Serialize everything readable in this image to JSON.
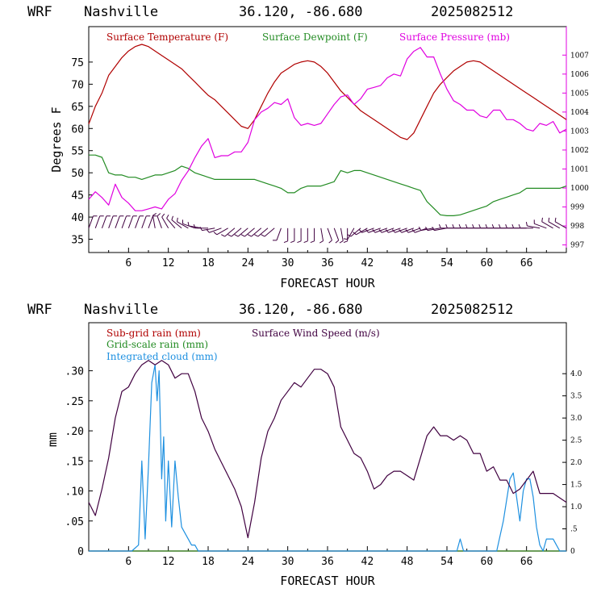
{
  "colors": {
    "temperature": "#b00000",
    "dewpoint": "#228b22",
    "pressure": "#e000e0",
    "wind_barbs": "#400040",
    "wind_speed": "#400040",
    "cloud": "#1e90e0"
  },
  "chart_data": [
    {
      "type": "line",
      "header": {
        "model": "WRF",
        "site": "Nashville",
        "coords": "36.120, -86.680",
        "run": "2025082512"
      },
      "xlabel": "FORECAST HOUR",
      "ylabel": "Degrees F",
      "xlim": [
        0,
        72
      ],
      "ylim": [
        32,
        83
      ],
      "xticks": [
        6,
        12,
        18,
        24,
        30,
        36,
        42,
        48,
        54,
        60,
        66
      ],
      "xtick_labels": [
        "6",
        "12",
        "18",
        "24",
        "30",
        "36",
        "42",
        "48",
        "54",
        "60",
        "66"
      ],
      "yticks": [
        35,
        40,
        45,
        50,
        55,
        60,
        65,
        70,
        75
      ],
      "ytick_labels": [
        "35",
        "40",
        "45",
        "50",
        "55",
        "60",
        "65",
        "70",
        "75"
      ],
      "y2lim": [
        996.6,
        1008.5
      ],
      "y2ticks": [
        997,
        998,
        999,
        1000,
        1001,
        1002,
        1003,
        1004,
        1005,
        1006,
        1007
      ],
      "y2tick_labels": [
        "997",
        "998",
        "999",
        "1000",
        "1001",
        "1002",
        "1003",
        "1004",
        "1005",
        "1006",
        "1007"
      ],
      "legend": [
        "Surface Temperature (F)",
        "Surface Dewpoint (F)",
        "Surface Pressure (mb)"
      ],
      "series": [
        {
          "name": "Surface Temperature (F)",
          "axis": "left",
          "x": [
            0,
            1,
            2,
            3,
            4,
            5,
            6,
            7,
            8,
            9,
            10,
            11,
            12,
            13,
            14,
            15,
            16,
            17,
            18,
            19,
            20,
            21,
            22,
            23,
            24,
            25,
            26,
            27,
            28,
            29,
            30,
            31,
            32,
            33,
            34,
            35,
            36,
            37,
            38,
            39,
            40,
            41,
            42,
            43,
            44,
            45,
            46,
            47,
            48,
            49,
            50,
            51,
            52,
            53,
            54,
            55,
            56,
            57,
            58,
            59,
            60,
            61,
            62,
            63,
            64,
            65,
            66,
            67,
            68,
            69,
            70,
            71,
            72
          ],
          "y": [
            61,
            65,
            68,
            72,
            74,
            76,
            77.5,
            78.5,
            79,
            78.5,
            77.5,
            76.5,
            75.5,
            74.5,
            73.5,
            72,
            70.5,
            69,
            67.5,
            66.5,
            65,
            63.5,
            62,
            60.5,
            60,
            62,
            65,
            68,
            70.5,
            72.5,
            73.5,
            74.5,
            75,
            75.3,
            75,
            74,
            72.5,
            70.5,
            68.5,
            67,
            65.5,
            64,
            63,
            62,
            61,
            60,
            59,
            58,
            57.5,
            59,
            62,
            65,
            68,
            70,
            71.5,
            73,
            74,
            75,
            75.3,
            75,
            74,
            73,
            72,
            71,
            70,
            69,
            68,
            67,
            66,
            65,
            64,
            63,
            62
          ]
        },
        {
          "name": "Surface Dewpoint (F)",
          "axis": "left",
          "x": [
            0,
            1,
            2,
            3,
            4,
            5,
            6,
            7,
            8,
            9,
            10,
            11,
            12,
            13,
            14,
            15,
            16,
            17,
            18,
            19,
            20,
            21,
            22,
            23,
            24,
            25,
            26,
            27,
            28,
            29,
            30,
            31,
            32,
            33,
            34,
            35,
            36,
            37,
            38,
            39,
            40,
            41,
            42,
            43,
            44,
            45,
            46,
            47,
            48,
            49,
            50,
            51,
            52,
            53,
            54,
            55,
            56,
            57,
            58,
            59,
            60,
            61,
            62,
            63,
            64,
            65,
            66,
            67,
            68,
            69,
            70,
            71,
            72
          ],
          "y": [
            54,
            54,
            53.5,
            50,
            49.5,
            49.5,
            49,
            49,
            48.5,
            49,
            49.5,
            49.5,
            50,
            50.5,
            51.5,
            51,
            50,
            49.5,
            49,
            48.5,
            48.5,
            48.5,
            48.5,
            48.5,
            48.5,
            48.5,
            48,
            47.5,
            47,
            46.5,
            45.5,
            45.5,
            46.5,
            47,
            47,
            47,
            47.5,
            48,
            50.5,
            50,
            50.5,
            50.5,
            50,
            49.5,
            49,
            48.5,
            48,
            47.5,
            47,
            46.5,
            46,
            43.5,
            42,
            40.5,
            40.3,
            40.3,
            40.5,
            41,
            41.5,
            42,
            42.5,
            43.5,
            44,
            44.5,
            45,
            45.5,
            46.5,
            46.5,
            46.5,
            46.5,
            46.5,
            46.5,
            47
          ]
        },
        {
          "name": "Surface Pressure (mb)",
          "axis": "right",
          "x": [
            0,
            1,
            2,
            3,
            4,
            5,
            6,
            7,
            8,
            9,
            10,
            11,
            12,
            13,
            14,
            15,
            16,
            17,
            18,
            19,
            20,
            21,
            22,
            23,
            24,
            25,
            26,
            27,
            28,
            29,
            30,
            31,
            32,
            33,
            34,
            35,
            36,
            37,
            38,
            39,
            40,
            41,
            42,
            43,
            44,
            45,
            46,
            47,
            48,
            49,
            50,
            51,
            52,
            53,
            54,
            55,
            56,
            57,
            58,
            59,
            60,
            61,
            62,
            63,
            64,
            65,
            66,
            67,
            68,
            69,
            70,
            71,
            72
          ],
          "y": [
            999.4,
            999.8,
            999.5,
            999.1,
            1000.2,
            999.5,
            999.2,
            998.8,
            998.8,
            998.9,
            999.0,
            998.9,
            999.4,
            999.7,
            1000.4,
            1000.9,
            1001.6,
            1002.2,
            1002.6,
            1001.6,
            1001.7,
            1001.7,
            1001.9,
            1001.9,
            1002.4,
            1003.6,
            1004.0,
            1004.2,
            1004.5,
            1004.4,
            1004.7,
            1003.7,
            1003.3,
            1003.4,
            1003.3,
            1003.4,
            1003.9,
            1004.4,
            1004.8,
            1004.9,
            1004.4,
            1004.7,
            1005.2,
            1005.3,
            1005.4,
            1005.8,
            1006.0,
            1005.9,
            1006.8,
            1007.2,
            1007.4,
            1006.9,
            1006.9,
            1006.0,
            1005.2,
            1004.6,
            1004.4,
            1004.1,
            1004.1,
            1003.8,
            1003.7,
            1004.1,
            1004.1,
            1003.6,
            1003.6,
            1003.4,
            1003.1,
            1003.0,
            1003.4,
            1003.3,
            1003.5,
            1002.9,
            1003.1
          ]
        }
      ],
      "wind_barbs": {
        "y_level": 37.5,
        "hours": [
          0,
          1,
          2,
          3,
          4,
          5,
          6,
          7,
          8,
          9,
          10,
          11,
          12,
          13,
          14,
          15,
          16,
          17,
          18,
          19,
          20,
          21,
          22,
          23,
          24,
          25,
          26,
          27,
          28,
          29,
          30,
          31,
          32,
          33,
          34,
          35,
          36,
          37,
          38,
          39,
          40,
          41,
          42,
          43,
          44,
          45,
          46,
          47,
          48,
          49,
          50,
          51,
          52,
          53,
          54,
          55,
          56,
          57,
          58,
          59,
          60,
          61,
          62,
          63,
          64,
          65,
          66,
          67,
          68,
          69,
          70,
          71,
          72
        ],
        "direction_deg": [
          20,
          20,
          20,
          20,
          20,
          20,
          20,
          20,
          20,
          20,
          350,
          340,
          330,
          320,
          310,
          300,
          290,
          280,
          270,
          260,
          250,
          240,
          230,
          230,
          230,
          230,
          230,
          230,
          230,
          200,
          180,
          180,
          180,
          180,
          180,
          170,
          160,
          160,
          170,
          180,
          210,
          230,
          240,
          250,
          250,
          250,
          250,
          250,
          250,
          250,
          250,
          250,
          260,
          260,
          260,
          270,
          270,
          270,
          270,
          270,
          270,
          270,
          270,
          270,
          270,
          270,
          270,
          270,
          280,
          290,
          300,
          300,
          300
        ]
      }
    },
    {
      "type": "line",
      "header": {
        "model": "WRF",
        "site": "Nashville",
        "coords": "36.120, -86.680",
        "run": "2025082512"
      },
      "xlabel": "FORECAST HOUR",
      "ylabel": "mm",
      "xlim": [
        0,
        72
      ],
      "ylim": [
        0,
        0.38
      ],
      "xticks": [
        6,
        12,
        18,
        24,
        30,
        36,
        42,
        48,
        54,
        60,
        66
      ],
      "xtick_labels": [
        "6",
        "12",
        "18",
        "24",
        "30",
        "36",
        "42",
        "48",
        "54",
        "60",
        "66"
      ],
      "yticks": [
        0,
        0.05,
        0.1,
        0.15,
        0.2,
        0.25,
        0.3
      ],
      "ytick_labels": [
        "0",
        ".05",
        ".10",
        ".15",
        ".20",
        ".25",
        ".30"
      ],
      "y2lim": [
        0,
        5.15
      ],
      "y2ticks": [
        0,
        0.5,
        1.0,
        1.5,
        2.0,
        2.5,
        3.0,
        3.5,
        4.0
      ],
      "y2tick_labels": [
        "0",
        ".5",
        "1.0",
        "1.5",
        "2.0",
        "2.5",
        "3.0",
        "3.5",
        "4.0"
      ],
      "legend": [
        "Sub-grid rain (mm)",
        "Grid-scale rain (mm)",
        "Integrated cloud (mm)",
        "Surface Wind Speed (m/s)"
      ],
      "series": [
        {
          "name": "Sub-grid rain (mm)",
          "axis": "left",
          "x": [
            0,
            72
          ],
          "y": [
            0,
            0
          ]
        },
        {
          "name": "Grid-scale rain (mm)",
          "axis": "left",
          "x": [
            0,
            72
          ],
          "y": [
            0,
            0
          ]
        },
        {
          "name": "Integrated cloud (mm)",
          "axis": "left",
          "x": [
            0,
            6.5,
            7.5,
            8,
            8.5,
            9,
            9.5,
            10,
            10.3,
            10.6,
            11,
            11.3,
            11.6,
            12,
            12.5,
            13,
            13.5,
            14,
            14.5,
            15,
            15.5,
            16,
            16.5,
            55.5,
            56,
            56.5,
            61.5,
            62.5,
            63.5,
            64,
            64.5,
            65,
            65.5,
            66,
            66.5,
            67,
            67.5,
            68,
            68.5,
            69,
            69.5,
            70,
            70.5,
            71,
            72
          ],
          "y": [
            0,
            0,
            0.01,
            0.15,
            0.02,
            0.14,
            0.28,
            0.31,
            0.25,
            0.3,
            0.12,
            0.19,
            0.05,
            0.15,
            0.04,
            0.15,
            0.09,
            0.04,
            0.03,
            0.02,
            0.01,
            0.01,
            0,
            0,
            0.02,
            0,
            0,
            0.05,
            0.12,
            0.13,
            0.09,
            0.05,
            0.1,
            0.12,
            0.12,
            0.09,
            0.04,
            0.01,
            0,
            0.02,
            0.02,
            0.02,
            0.01,
            0,
            0
          ]
        },
        {
          "name": "Surface Wind Speed (m/s)",
          "axis": "right",
          "x": [
            0,
            1,
            2,
            3,
            4,
            5,
            6,
            7,
            8,
            9,
            10,
            11,
            12,
            13,
            14,
            15,
            16,
            17,
            18,
            19,
            20,
            21,
            22,
            23,
            24,
            25,
            26,
            27,
            28,
            29,
            30,
            31,
            32,
            33,
            34,
            35,
            36,
            37,
            38,
            39,
            40,
            41,
            42,
            43,
            44,
            45,
            46,
            47,
            48,
            49,
            50,
            51,
            52,
            53,
            54,
            55,
            56,
            57,
            58,
            59,
            60,
            61,
            62,
            63,
            64,
            65,
            66,
            67,
            68,
            69,
            70,
            71,
            72
          ],
          "x_note": "",
          "y": [
            1.1,
            0.8,
            1.4,
            2.1,
            3.0,
            3.6,
            3.7,
            4.0,
            4.2,
            4.3,
            4.2,
            4.3,
            4.2,
            3.9,
            4.0,
            4.0,
            3.6,
            3.0,
            2.7,
            2.3,
            2.0,
            1.7,
            1.4,
            1.0,
            0.3,
            1.1,
            2.1,
            2.7,
            3.0,
            3.4,
            3.6,
            3.8,
            3.7,
            3.9,
            4.1,
            4.1,
            4.0,
            3.7,
            2.8,
            2.5,
            2.2,
            2.1,
            1.8,
            1.4,
            1.5,
            1.7,
            1.8,
            1.8,
            1.7,
            1.6,
            2.1,
            2.6,
            2.8,
            2.6,
            2.6,
            2.5,
            2.6,
            2.5,
            2.2,
            2.2,
            1.8,
            1.9,
            1.6,
            1.6,
            1.3,
            1.4,
            1.6,
            1.8,
            1.3,
            1.3,
            1.3,
            1.2,
            1.1
          ]
        }
      ]
    }
  ]
}
